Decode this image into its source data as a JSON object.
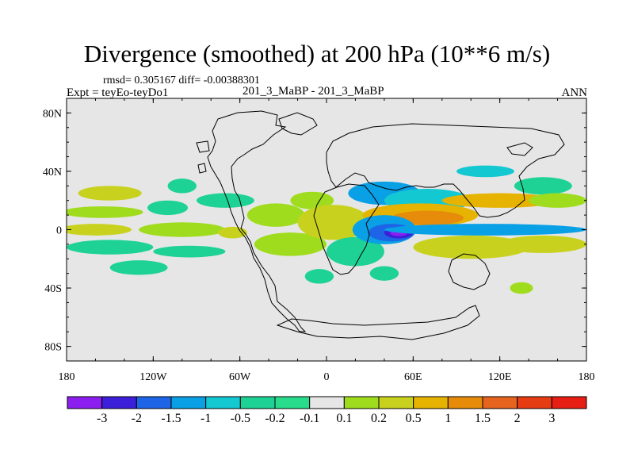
{
  "chart_data": {
    "type": "heatmap",
    "title": "Divergence (smoothed) at 200 hPa (10**6 m/s)",
    "stats": "rmsd= 0.305167 diff= -0.00388301",
    "experiment": "Expt = teyEo-teyDo1",
    "runs": "201_3_MaBP - 201_3_MaBP",
    "season": "ANN",
    "x_ticks": [
      "180",
      "120W",
      "60W",
      "0",
      "60E",
      "120E",
      "180"
    ],
    "y_ticks": [
      "80N",
      "40N",
      "0",
      "40S",
      "80S"
    ],
    "x_range": [
      -180,
      180
    ],
    "y_range": [
      -90,
      90
    ],
    "colorbar": {
      "labels": [
        "-3",
        "-2",
        "-1.5",
        "-1",
        "-0.5",
        "-0.2",
        "-0.1",
        "0.1",
        "0.2",
        "0.5",
        "1",
        "1.5",
        "2",
        "3"
      ],
      "colors": [
        "#8c1ff0",
        "#3c1fd8",
        "#1e64e6",
        "#0aa0e6",
        "#14c8d2",
        "#1ed296",
        "#28dc8c",
        "#e6e6e6",
        "#a0dc1e",
        "#c8d21e",
        "#e6b400",
        "#e68c0a",
        "#e6641e",
        "#e63c14",
        "#e61e14"
      ]
    },
    "background_color": "#e6e6e6",
    "regions": [
      {
        "lon": -150,
        "lat": 25,
        "rlon": 22,
        "rlat": 5,
        "bin": 9
      },
      {
        "lon": -155,
        "lat": 12,
        "rlon": 28,
        "rlat": 4,
        "bin": 8
      },
      {
        "lon": -160,
        "lat": 0,
        "rlon": 25,
        "rlat": 4,
        "bin": 9
      },
      {
        "lon": -150,
        "lat": -12,
        "rlon": 30,
        "rlat": 5,
        "bin": 5
      },
      {
        "lon": -130,
        "lat": -26,
        "rlon": 20,
        "rlat": 5,
        "bin": 5
      },
      {
        "lon": -110,
        "lat": 15,
        "rlon": 14,
        "rlat": 5,
        "bin": 5
      },
      {
        "lon": -100,
        "lat": 30,
        "rlon": 10,
        "rlat": 5,
        "bin": 5
      },
      {
        "lon": -100,
        "lat": 0,
        "rlon": 30,
        "rlat": 5,
        "bin": 8
      },
      {
        "lon": -95,
        "lat": -15,
        "rlon": 25,
        "rlat": 4,
        "bin": 5
      },
      {
        "lon": -70,
        "lat": 20,
        "rlon": 20,
        "rlat": 5,
        "bin": 5
      },
      {
        "lon": -65,
        "lat": -2,
        "rlon": 10,
        "rlat": 4,
        "bin": 9
      },
      {
        "lon": -35,
        "lat": 10,
        "rlon": 20,
        "rlat": 8,
        "bin": 8
      },
      {
        "lon": -25,
        "lat": -10,
        "rlon": 25,
        "rlat": 8,
        "bin": 8
      },
      {
        "lon": -10,
        "lat": 20,
        "rlon": 15,
        "rlat": 6,
        "bin": 8
      },
      {
        "lon": 5,
        "lat": 5,
        "rlon": 25,
        "rlat": 12,
        "bin": 9
      },
      {
        "lon": 20,
        "lat": -15,
        "rlon": 20,
        "rlat": 10,
        "bin": 5
      },
      {
        "lon": -5,
        "lat": -32,
        "rlon": 10,
        "rlat": 5,
        "bin": 5
      },
      {
        "lon": 40,
        "lat": 25,
        "rlon": 25,
        "rlat": 8,
        "bin": 3
      },
      {
        "lon": 70,
        "lat": 20,
        "rlon": 30,
        "rlat": 8,
        "bin": 4
      },
      {
        "lon": 65,
        "lat": 10,
        "rlon": 40,
        "rlat": 8,
        "bin": 10
      },
      {
        "lon": 70,
        "lat": 8,
        "rlon": 25,
        "rlat": 5,
        "bin": 11
      },
      {
        "lon": 40,
        "lat": 0,
        "rlon": 22,
        "rlat": 10,
        "bin": 3
      },
      {
        "lon": 45,
        "lat": -2,
        "rlon": 16,
        "rlat": 6,
        "bin": 2
      },
      {
        "lon": 50,
        "lat": -2,
        "rlon": 10,
        "rlat": 4,
        "bin": 1
      },
      {
        "lon": 50,
        "lat": -2,
        "rlon": 6,
        "rlat": 2.5,
        "bin": 0
      },
      {
        "lon": 110,
        "lat": 0,
        "rlon": 70,
        "rlat": 4,
        "bin": 3
      },
      {
        "lon": 100,
        "lat": -12,
        "rlon": 40,
        "rlat": 8,
        "bin": 9
      },
      {
        "lon": 150,
        "lat": -10,
        "rlon": 30,
        "rlat": 6,
        "bin": 9
      },
      {
        "lon": 120,
        "lat": 20,
        "rlon": 40,
        "rlat": 5,
        "bin": 10
      },
      {
        "lon": 150,
        "lat": 30,
        "rlon": 20,
        "rlat": 6,
        "bin": 5
      },
      {
        "lon": 110,
        "lat": 40,
        "rlon": 20,
        "rlat": 4,
        "bin": 4
      },
      {
        "lon": 160,
        "lat": 20,
        "rlon": 20,
        "rlat": 5,
        "bin": 8
      },
      {
        "lon": 40,
        "lat": -30,
        "rlon": 10,
        "rlat": 5,
        "bin": 5
      },
      {
        "lon": 135,
        "lat": -40,
        "rlon": 8,
        "rlat": 4,
        "bin": 8
      }
    ]
  }
}
